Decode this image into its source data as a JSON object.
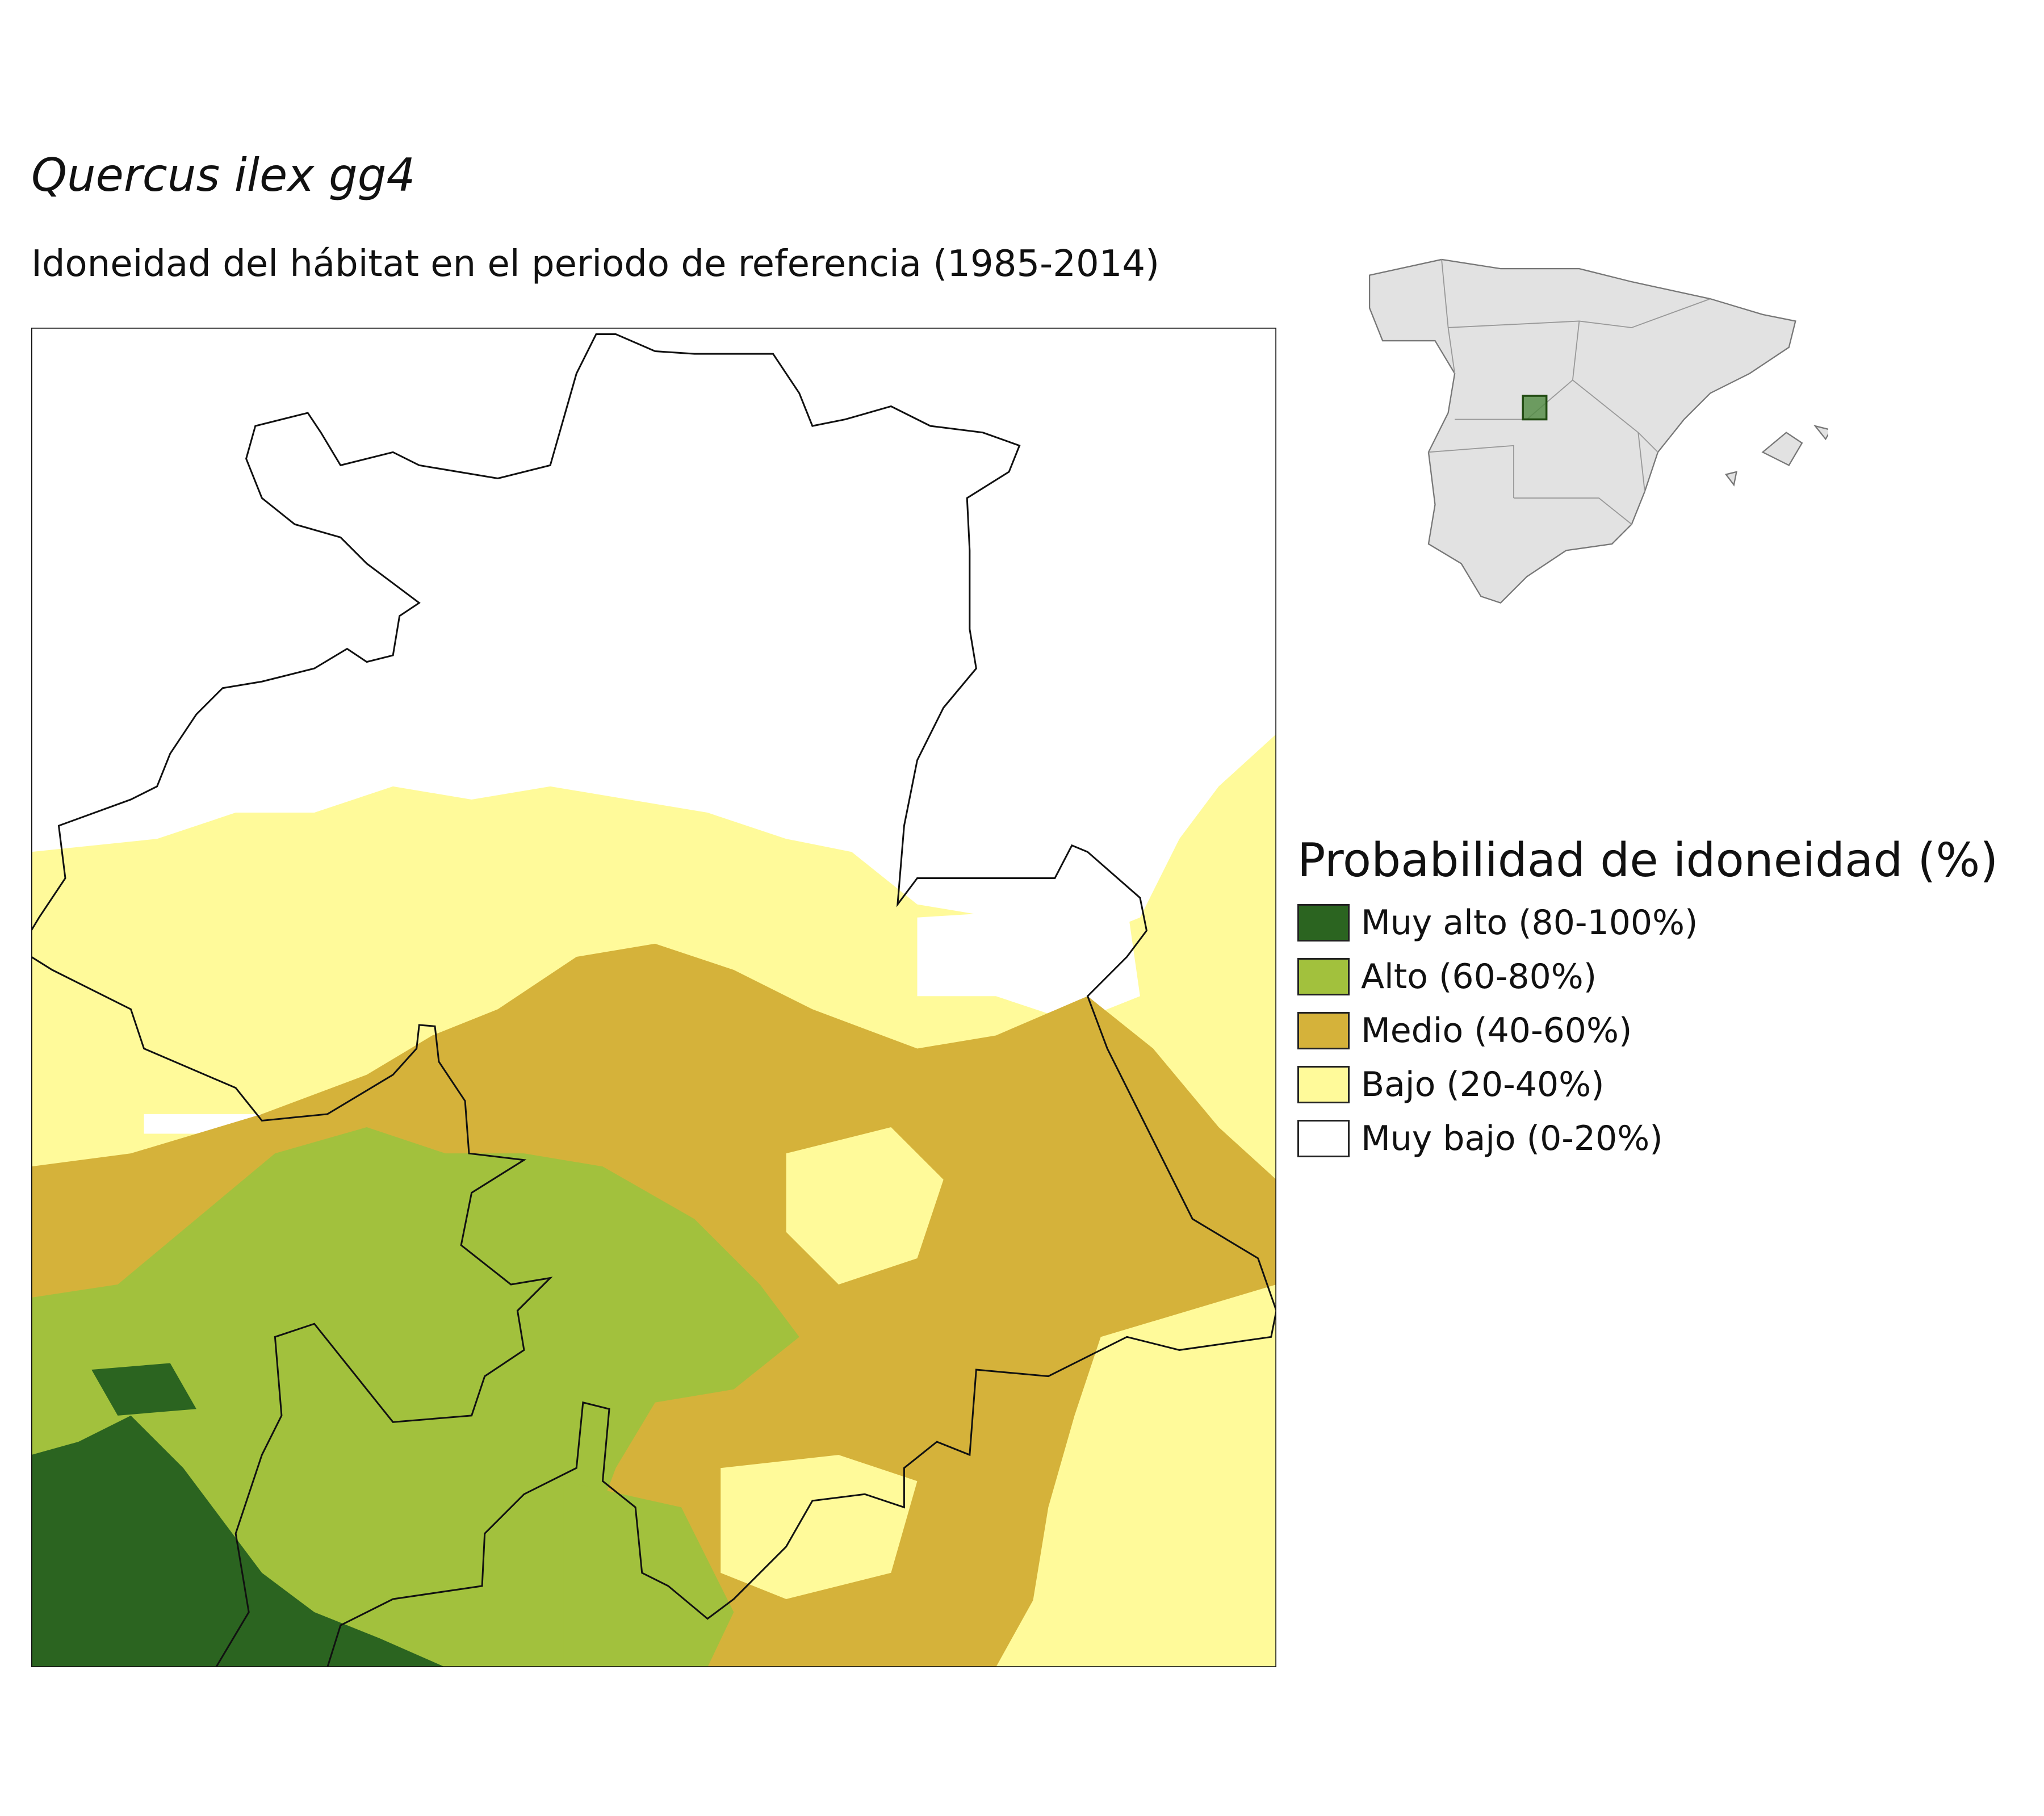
{
  "header": {
    "title": "Quercus ilex gg4",
    "subtitle": "Idoneidad del hábitat en el periodo de referencia (1985-2014)"
  },
  "legend": {
    "title": "Probabilidad de idoneidad (%)",
    "items": [
      {
        "label": "Muy alto (80-100%)",
        "color": "#2b6420"
      },
      {
        "label": "Alto (60-80%)",
        "color": "#a2c13d"
      },
      {
        "label": "Medio (40-60%)",
        "color": "#d5b23a"
      },
      {
        "label": "Bajo (20-40%)",
        "color": "#fffa9a"
      },
      {
        "label": "Muy bajo (0-20%)",
        "color": "#ffffff"
      }
    ]
  }
}
